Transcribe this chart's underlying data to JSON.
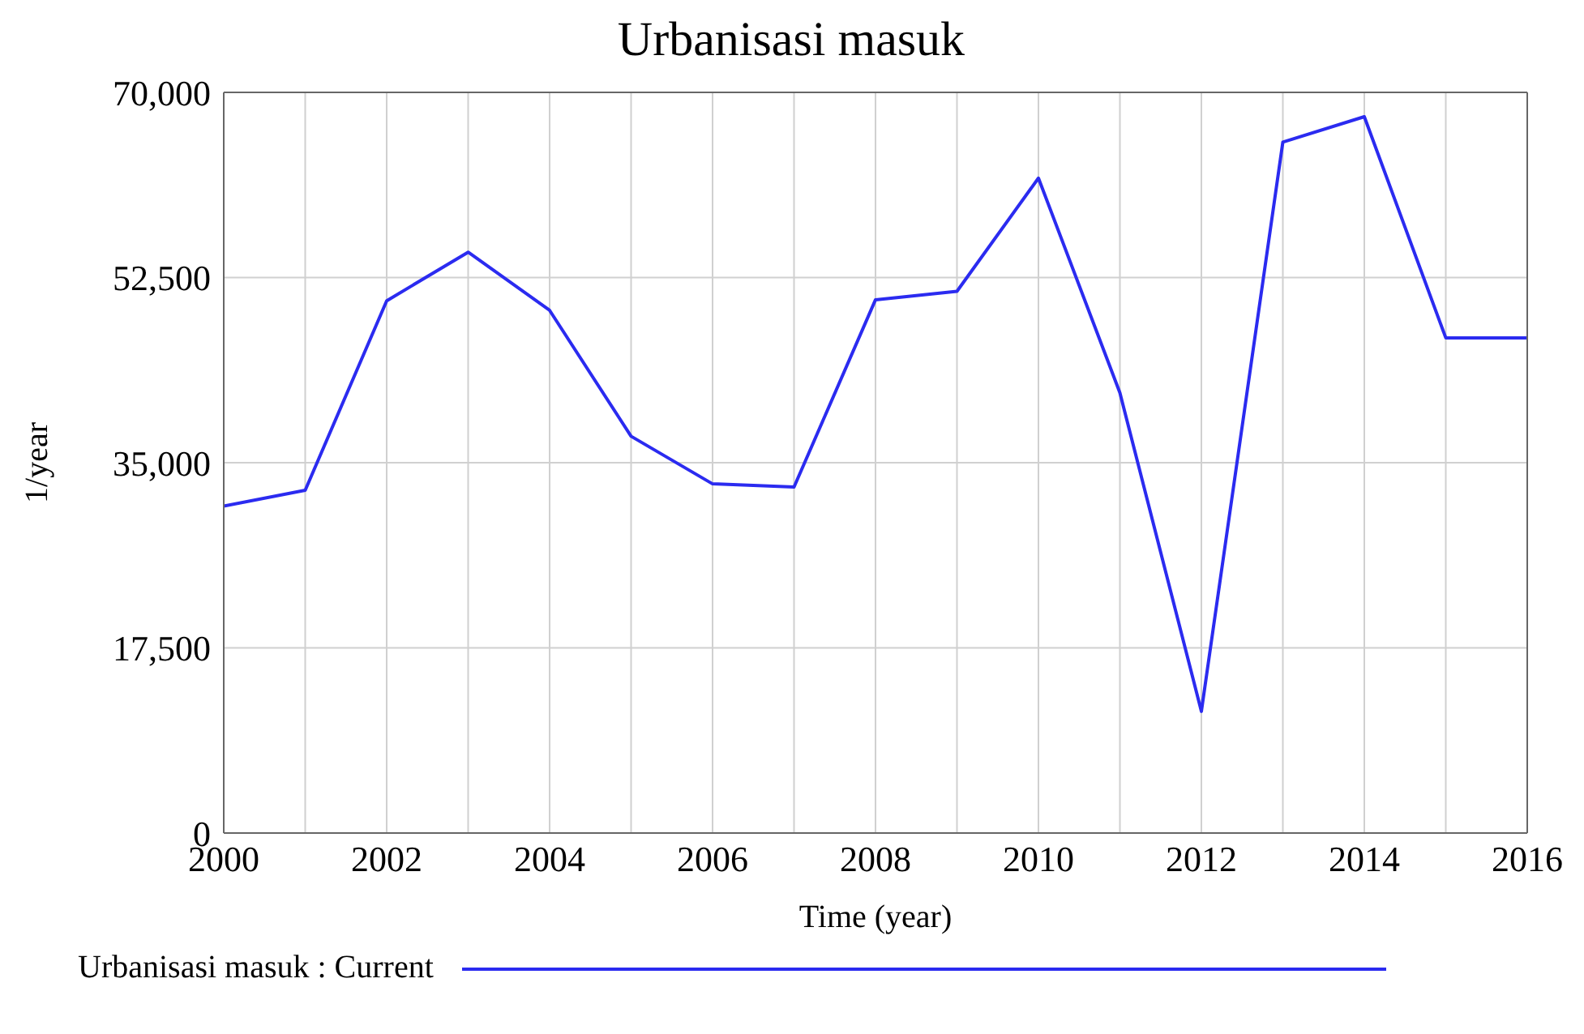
{
  "chart_data": {
    "type": "line",
    "title": "Urbanisasi masuk",
    "xlabel": "Time (year)",
    "ylabel": "1/year",
    "x": [
      2000,
      2001,
      2002,
      2003,
      2004,
      2005,
      2006,
      2007,
      2008,
      2009,
      2010,
      2011,
      2012,
      2013,
      2014,
      2015,
      2016
    ],
    "series": [
      {
        "name": "Urbanisasi masuk : Current",
        "color": "#2b2bf0",
        "values": [
          30900,
          32400,
          50300,
          54900,
          49400,
          37500,
          33000,
          32700,
          50400,
          51200,
          61900,
          41600,
          11500,
          65300,
          67700,
          46800,
          46800
        ]
      }
    ],
    "xlim": [
      2000,
      2016
    ],
    "xticks": [
      2000,
      {
        "value": 2001,
        "label": null
      },
      2002,
      {
        "value": 2003,
        "label": null
      },
      2004,
      {
        "value": 2005,
        "label": null
      },
      2006,
      {
        "value": 2007,
        "label": null
      },
      2008,
      {
        "value": 2009,
        "label": null
      },
      2010,
      {
        "value": 2011,
        "label": null
      },
      2012,
      {
        "value": 2013,
        "label": null
      },
      2014,
      {
        "value": 2015,
        "label": null
      },
      2016
    ],
    "ylim": [
      0,
      70000
    ],
    "yticks": [
      0,
      {
        "value": 17500,
        "label": "17,500"
      },
      {
        "value": 35000,
        "label": "35,000"
      },
      {
        "value": 52500,
        "label": "52,500"
      },
      {
        "value": 70000,
        "label": "70,000"
      }
    ],
    "grid": true,
    "legend": "bottom",
    "marker": "none",
    "line_style": "solid"
  }
}
